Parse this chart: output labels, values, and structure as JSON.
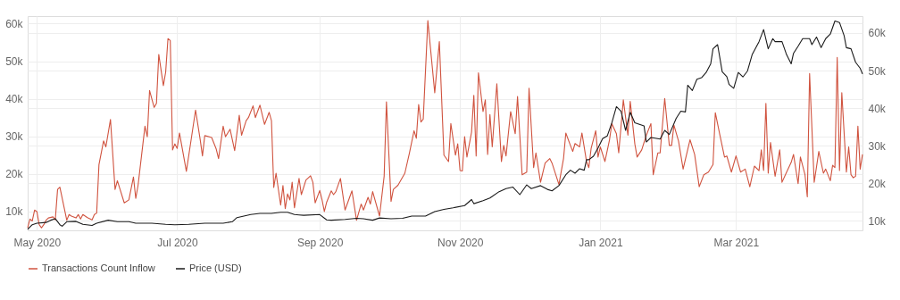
{
  "chart_data": {
    "type": "line",
    "xlim": [
      "2020-04-27",
      "2021-04-25"
    ],
    "xticks": [
      {
        "value": "2020-05-01",
        "label": "May 2020"
      },
      {
        "value": "2020-07-01",
        "label": "Jul 2020"
      },
      {
        "value": "2020-09-01",
        "label": "Sep 2020"
      },
      {
        "value": "2020-11-01",
        "label": "Nov 2020"
      },
      {
        "value": "2021-01-01",
        "label": "Jan 2021"
      },
      {
        "value": "2021-03-01",
        "label": "Mar 2021"
      }
    ],
    "ylim": [
      5000,
      62000
    ],
    "yticks": [
      {
        "value": 10000,
        "label": "10k"
      },
      {
        "value": 20000,
        "label": "20k"
      },
      {
        "value": 30000,
        "label": "30k"
      },
      {
        "value": 40000,
        "label": "40k"
      },
      {
        "value": 50000,
        "label": "50k"
      },
      {
        "value": 60000,
        "label": "60k"
      }
    ],
    "y2lim": [
      7500,
      64500
    ],
    "y2ticks": [
      {
        "value": 10000,
        "label": "10k"
      },
      {
        "value": 20000,
        "label": "20k"
      },
      {
        "value": 30000,
        "label": "30k"
      },
      {
        "value": 40000,
        "label": "40k"
      },
      {
        "value": 50000,
        "label": "50k"
      },
      {
        "value": 60000,
        "label": "60k"
      }
    ],
    "grid": true,
    "legend": "bottom",
    "line_style": "solid",
    "marker": "none",
    "series": [
      {
        "name": "Transactions Count Inflow",
        "color": "#d0533f",
        "axis": "y",
        "x": [
          "2020-04-27",
          "2020-04-28",
          "2020-04-29",
          "2020-04-30",
          "2020-05-01",
          "2020-05-02",
          "2020-05-03",
          "2020-05-04",
          "2020-05-05",
          "2020-05-06",
          "2020-05-08",
          "2020-05-09",
          "2020-05-10",
          "2020-05-11",
          "2020-05-14",
          "2020-05-15",
          "2020-05-16",
          "2020-05-18",
          "2020-05-19",
          "2020-05-20",
          "2020-05-21",
          "2020-05-23",
          "2020-05-25",
          "2020-05-26",
          "2020-05-27",
          "2020-05-28",
          "2020-05-30",
          "2020-05-31",
          "2020-06-02",
          "2020-06-04",
          "2020-06-05",
          "2020-06-08",
          "2020-06-10",
          "2020-06-12",
          "2020-06-13",
          "2020-06-14",
          "2020-06-17",
          "2020-06-18",
          "2020-06-19",
          "2020-06-21",
          "2020-06-22",
          "2020-06-23",
          "2020-06-25",
          "2020-06-26",
          "2020-06-27",
          "2020-06-28",
          "2020-06-29",
          "2020-06-30",
          "2020-07-01",
          "2020-07-02",
          "2020-07-05",
          "2020-07-07",
          "2020-07-09",
          "2020-07-11",
          "2020-07-12",
          "2020-07-13",
          "2020-07-16",
          "2020-07-18",
          "2020-07-19",
          "2020-07-21",
          "2020-07-22",
          "2020-07-24",
          "2020-07-26",
          "2020-07-28",
          "2020-07-29",
          "2020-07-31",
          "2020-08-01",
          "2020-08-03",
          "2020-08-04",
          "2020-08-06",
          "2020-08-08",
          "2020-08-10",
          "2020-08-11",
          "2020-08-12",
          "2020-08-13",
          "2020-08-15",
          "2020-08-16",
          "2020-08-17",
          "2020-08-18",
          "2020-08-19",
          "2020-08-20",
          "2020-08-21",
          "2020-08-23",
          "2020-08-24",
          "2020-08-26",
          "2020-08-28",
          "2020-08-29",
          "2020-08-30",
          "2020-09-01",
          "2020-09-02",
          "2020-09-03",
          "2020-09-04",
          "2020-09-06",
          "2020-09-07",
          "2020-09-08",
          "2020-09-10",
          "2020-09-12",
          "2020-09-15",
          "2020-09-17",
          "2020-09-19",
          "2020-09-20",
          "2020-09-22",
          "2020-09-23",
          "2020-09-24",
          "2020-09-27",
          "2020-09-29",
          "2020-09-30",
          "2020-10-02",
          "2020-10-03",
          "2020-10-05",
          "2020-10-08",
          "2020-10-10",
          "2020-10-12",
          "2020-10-13",
          "2020-10-14",
          "2020-10-15",
          "2020-10-16",
          "2020-10-18",
          "2020-10-21",
          "2020-10-23",
          "2020-10-25",
          "2020-10-27",
          "2020-10-28",
          "2020-10-30",
          "2020-10-31",
          "2020-11-01",
          "2020-11-02",
          "2020-11-03",
          "2020-11-04",
          "2020-11-06",
          "2020-11-07",
          "2020-11-08",
          "2020-11-09",
          "2020-11-11",
          "2020-11-12",
          "2020-11-13",
          "2020-11-14",
          "2020-11-15",
          "2020-11-17",
          "2020-11-19",
          "2020-11-20",
          "2020-11-21",
          "2020-11-23",
          "2020-11-25",
          "2020-11-26",
          "2020-11-28",
          "2020-11-30",
          "2020-12-01",
          "2020-12-03",
          "2020-12-04",
          "2020-12-06",
          "2020-12-08",
          "2020-12-10",
          "2020-12-11",
          "2020-12-14",
          "2020-12-16",
          "2020-12-17",
          "2020-12-19",
          "2020-12-20",
          "2020-12-21",
          "2020-12-23",
          "2020-12-24",
          "2020-12-26",
          "2020-12-27",
          "2020-12-28",
          "2020-12-30",
          "2020-12-31",
          "2021-01-01",
          "2021-01-03",
          "2021-01-05",
          "2021-01-06",
          "2021-01-08",
          "2021-01-09",
          "2021-01-11",
          "2021-01-13",
          "2021-01-14",
          "2021-01-16",
          "2021-01-17",
          "2021-01-19",
          "2021-01-21",
          "2021-01-23",
          "2021-01-24",
          "2021-01-26",
          "2021-01-27",
          "2021-01-29",
          "2021-01-31",
          "2021-02-01",
          "2021-02-02",
          "2021-02-04",
          "2021-02-06",
          "2021-02-09",
          "2021-02-11",
          "2021-02-13",
          "2021-02-15",
          "2021-02-17",
          "2021-02-19",
          "2021-02-20",
          "2021-02-22",
          "2021-02-24",
          "2021-02-25",
          "2021-02-27",
          "2021-03-01",
          "2021-03-03",
          "2021-03-05",
          "2021-03-07",
          "2021-03-09",
          "2021-03-11",
          "2021-03-12",
          "2021-03-13",
          "2021-03-14",
          "2021-03-15",
          "2021-03-16",
          "2021-03-18",
          "2021-03-20",
          "2021-03-21",
          "2021-03-23",
          "2021-03-25",
          "2021-03-26",
          "2021-03-28",
          "2021-03-29",
          "2021-03-31",
          "2021-04-01",
          "2021-04-02",
          "2021-04-04",
          "2021-04-06",
          "2021-04-08",
          "2021-04-09",
          "2021-04-11",
          "2021-04-12",
          "2021-04-13",
          "2021-04-14",
          "2021-04-15",
          "2021-04-16",
          "2021-04-18",
          "2021-04-19",
          "2021-04-20",
          "2021-04-21",
          "2021-04-22",
          "2021-04-23",
          "2021-04-24",
          "2021-04-25"
        ],
        "values": [
          5700,
          8000,
          7500,
          10400,
          10000,
          6500,
          5700,
          6500,
          7700,
          8300,
          8600,
          7800,
          15900,
          16500,
          7700,
          9200,
          8800,
          8300,
          9200,
          8000,
          9200,
          8400,
          7800,
          9200,
          9600,
          22500,
          28800,
          27200,
          34500,
          15900,
          18200,
          12300,
          13100,
          19200,
          13500,
          17000,
          32700,
          29900,
          42200,
          37700,
          38800,
          51800,
          43500,
          47100,
          56000,
          55500,
          26400,
          28000,
          26800,
          30900,
          20700,
          28800,
          37000,
          29200,
          24800,
          30200,
          29700,
          26600,
          24100,
          32700,
          29900,
          31900,
          26200,
          35600,
          30300,
          34200,
          35000,
          38100,
          35000,
          38300,
          33200,
          36400,
          34200,
          16400,
          20200,
          11700,
          16900,
          10800,
          14700,
          13100,
          17800,
          11000,
          18800,
          14500,
          18400,
          19500,
          17800,
          12300,
          15600,
          13100,
          10000,
          12500,
          15500,
          14500,
          15300,
          18800,
          10400,
          15500,
          7700,
          12000,
          10400,
          13800,
          12000,
          15300,
          8800,
          19400,
          39200,
          12700,
          15900,
          17000,
          20200,
          25600,
          31500,
          29500,
          38500,
          33800,
          34600,
          60800,
          41600,
          55200,
          25000,
          23300,
          33400,
          25000,
          28000,
          20900,
          20800,
          29900,
          24500,
          31100,
          40900,
          24800,
          46900,
          36600,
          39700,
          25200,
          35800,
          27200,
          44000,
          23300,
          27600,
          24800,
          36600,
          30700,
          40600,
          19800,
          20500,
          42800,
          21700,
          25600,
          17800,
          22900,
          24100,
          22900,
          17200,
          24100,
          30900,
          27600,
          26000,
          28100,
          27200,
          30900,
          23300,
          21700,
          26800,
          31500,
          24500,
          27200,
          23300,
          29100,
          33400,
          30700,
          25600,
          39700,
          30300,
          39300,
          28000,
          24500,
          26400,
          30300,
          33400,
          19800,
          25600,
          25600,
          40100,
          27600,
          27600,
          33000,
          28800,
          21300,
          29100,
          25200,
          16600,
          19800,
          20500,
          22500,
          36300,
          30300,
          24500,
          24800,
          20500,
          24800,
          20500,
          21300,
          16600,
          22100,
          20900,
          26400,
          20900,
          38800,
          20200,
          28400,
          19400,
          26400,
          17800,
          20500,
          23100,
          25200,
          17400,
          24500,
          19800,
          13900,
          46700,
          17800,
          26000,
          20200,
          21300,
          18200,
          22300,
          21700,
          51000,
          20900,
          41600,
          20500,
          27200,
          19800,
          19000,
          19400,
          32700,
          21300,
          25200
        ]
      },
      {
        "name": "Price (USD)",
        "color": "#1a1a1a",
        "axis": "y2",
        "x": [
          "2020-04-27",
          "2020-04-29",
          "2020-05-01",
          "2020-05-05",
          "2020-05-07",
          "2020-05-09",
          "2020-05-11",
          "2020-05-12",
          "2020-05-14",
          "2020-05-18",
          "2020-05-21",
          "2020-05-25",
          "2020-05-27",
          "2020-06-01",
          "2020-06-05",
          "2020-06-10",
          "2020-06-13",
          "2020-06-20",
          "2020-06-26",
          "2020-06-30",
          "2020-07-06",
          "2020-07-13",
          "2020-07-21",
          "2020-07-25",
          "2020-07-27",
          "2020-07-30",
          "2020-08-02",
          "2020-08-06",
          "2020-08-11",
          "2020-08-15",
          "2020-08-18",
          "2020-08-21",
          "2020-08-23",
          "2020-08-25",
          "2020-09-01",
          "2020-09-04",
          "2020-09-06",
          "2020-09-12",
          "2020-09-17",
          "2020-09-20",
          "2020-09-24",
          "2020-09-27",
          "2020-10-02",
          "2020-10-07",
          "2020-10-11",
          "2020-10-17",
          "2020-10-21",
          "2020-10-25",
          "2020-10-29",
          "2020-11-03",
          "2020-11-06",
          "2020-11-07",
          "2020-11-11",
          "2020-11-14",
          "2020-11-18",
          "2020-11-21",
          "2020-11-24",
          "2020-11-27",
          "2020-11-30",
          "2020-12-02",
          "2020-12-06",
          "2020-12-09",
          "2020-12-11",
          "2020-12-14",
          "2020-12-17",
          "2020-12-19",
          "2020-12-21",
          "2020-12-23",
          "2020-12-25",
          "2020-12-26",
          "2020-12-27",
          "2020-12-29",
          "2020-12-31",
          "2021-01-02",
          "2021-01-04",
          "2021-01-06",
          "2021-01-08",
          "2021-01-10",
          "2021-01-12",
          "2021-01-14",
          "2021-01-16",
          "2021-01-18",
          "2021-01-20",
          "2021-01-21",
          "2021-01-23",
          "2021-01-27",
          "2021-01-29",
          "2021-01-31",
          "2021-02-03",
          "2021-02-05",
          "2021-02-07",
          "2021-02-08",
          "2021-02-10",
          "2021-02-12",
          "2021-02-14",
          "2021-02-16",
          "2021-02-18",
          "2021-02-19",
          "2021-02-21",
          "2021-02-23",
          "2021-02-25",
          "2021-02-26",
          "2021-02-28",
          "2021-03-02",
          "2021-03-04",
          "2021-03-06",
          "2021-03-08",
          "2021-03-11",
          "2021-03-13",
          "2021-03-15",
          "2021-03-17",
          "2021-03-18",
          "2021-03-21",
          "2021-03-23",
          "2021-03-25",
          "2021-03-26",
          "2021-03-28",
          "2021-03-30",
          "2021-04-02",
          "2021-04-03",
          "2021-04-05",
          "2021-04-07",
          "2021-04-09",
          "2021-04-11",
          "2021-04-13",
          "2021-04-15",
          "2021-04-17",
          "2021-04-18",
          "2021-04-20",
          "2021-04-22",
          "2021-04-24",
          "2021-04-25"
        ],
        "values": [
          7800,
          9000,
          9400,
          9600,
          10200,
          10600,
          9000,
          8600,
          9800,
          9900,
          9100,
          8800,
          9400,
          10200,
          9800,
          9800,
          9400,
          9400,
          9100,
          9000,
          9100,
          9400,
          9400,
          9800,
          10900,
          11300,
          11700,
          12000,
          12000,
          12300,
          12300,
          11700,
          11600,
          11500,
          11700,
          10300,
          10200,
          10400,
          10700,
          10600,
          10200,
          10800,
          10600,
          10700,
          11300,
          11300,
          12500,
          13100,
          13500,
          14100,
          15700,
          14600,
          15400,
          16100,
          17800,
          18600,
          19000,
          17000,
          19600,
          18600,
          19400,
          18400,
          18000,
          19400,
          22300,
          23500,
          22700,
          23900,
          23500,
          26300,
          26300,
          27200,
          29400,
          31900,
          32600,
          36100,
          40400,
          39200,
          34100,
          38900,
          36100,
          35700,
          35300,
          31000,
          32200,
          31800,
          34100,
          33000,
          37300,
          39200,
          39000,
          46100,
          44700,
          47700,
          48100,
          49500,
          51800,
          55800,
          56900,
          49700,
          48400,
          46300,
          45300,
          49500,
          48300,
          49900,
          54200,
          57700,
          60900,
          55800,
          58500,
          57700,
          57700,
          54200,
          51800,
          54600,
          56500,
          58500,
          58500,
          56900,
          58900,
          56100,
          58500,
          59700,
          63200,
          62800,
          59300,
          56100,
          55800,
          52200,
          50600,
          49100
        ]
      }
    ]
  }
}
